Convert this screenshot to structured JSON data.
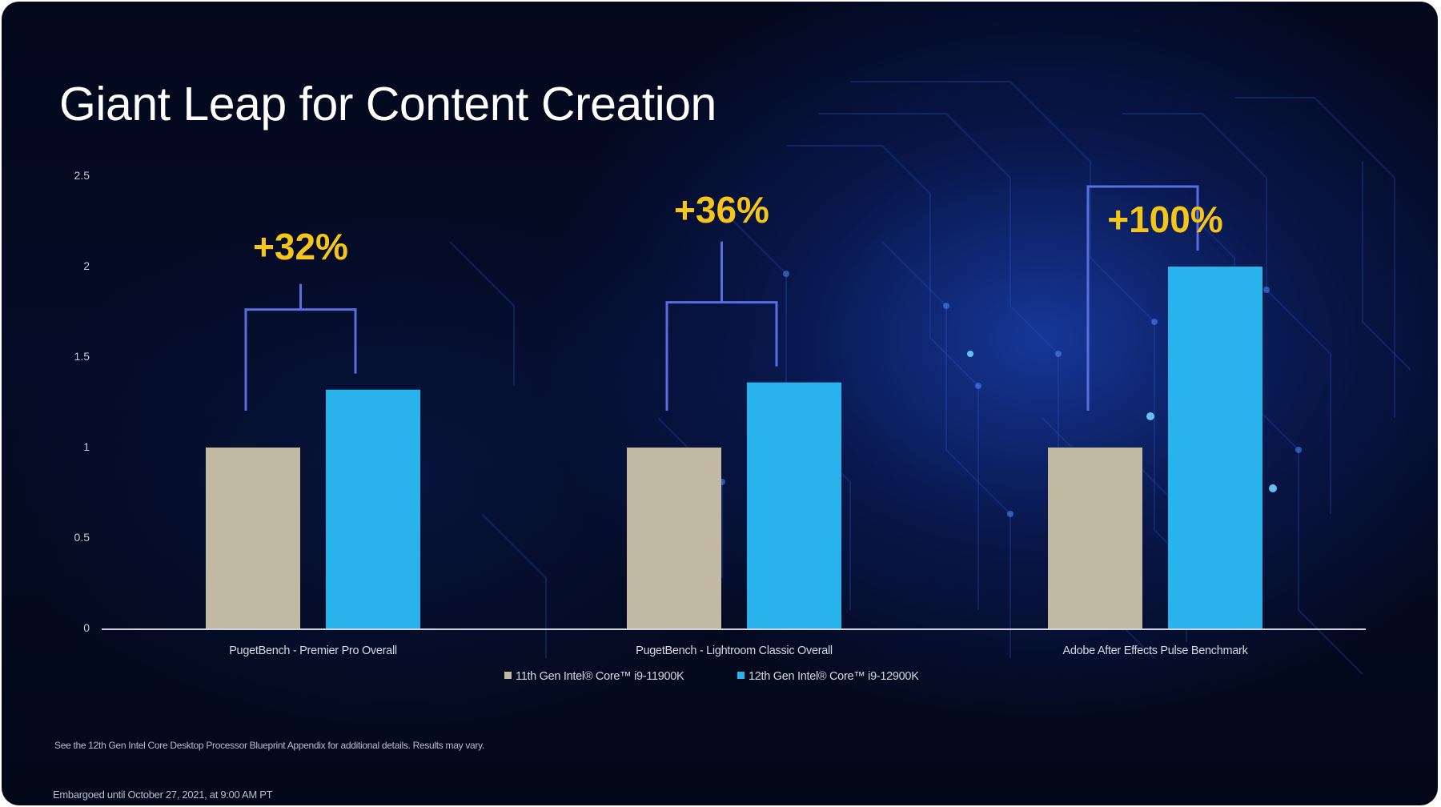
{
  "slide": {
    "title": "Giant Leap for Content Creation",
    "footnote": "See the 12th Gen Intel Core Desktop Processor Blueprint Appendix for additional details. Results may vary.",
    "embargo": "Embargoed until October 27, 2021, at 9:00 AM PT"
  },
  "chart_data": {
    "type": "bar",
    "title": "",
    "xlabel": "",
    "ylabel": "",
    "ylim": [
      0,
      2.5
    ],
    "yticks": [
      "0",
      "0.5",
      "1",
      "1.5",
      "2",
      "2.5"
    ],
    "ytick_values": [
      0,
      0.5,
      1,
      1.5,
      2,
      2.5
    ],
    "grid": false,
    "legend_position": "bottom-center",
    "categories": [
      "PugetBench - Premier Pro Overall",
      "PugetBench - Lightroom Classic Overall",
      "Adobe After Effects Pulse Benchmark"
    ],
    "series": [
      {
        "name": "11th Gen Intel® Core™ i9-11900K",
        "color": "#c2b9a2",
        "values": [
          1,
          1,
          1
        ]
      },
      {
        "name": "12th Gen Intel® Core™ i9-12900K",
        "color": "#28b3ec",
        "values": [
          1.32,
          1.36,
          2.0
        ]
      }
    ],
    "annotations": [
      "+32%",
      "+36%",
      "+100%"
    ],
    "annotation_color": "#f5c518",
    "bracket_color": "#5b6ee0"
  }
}
